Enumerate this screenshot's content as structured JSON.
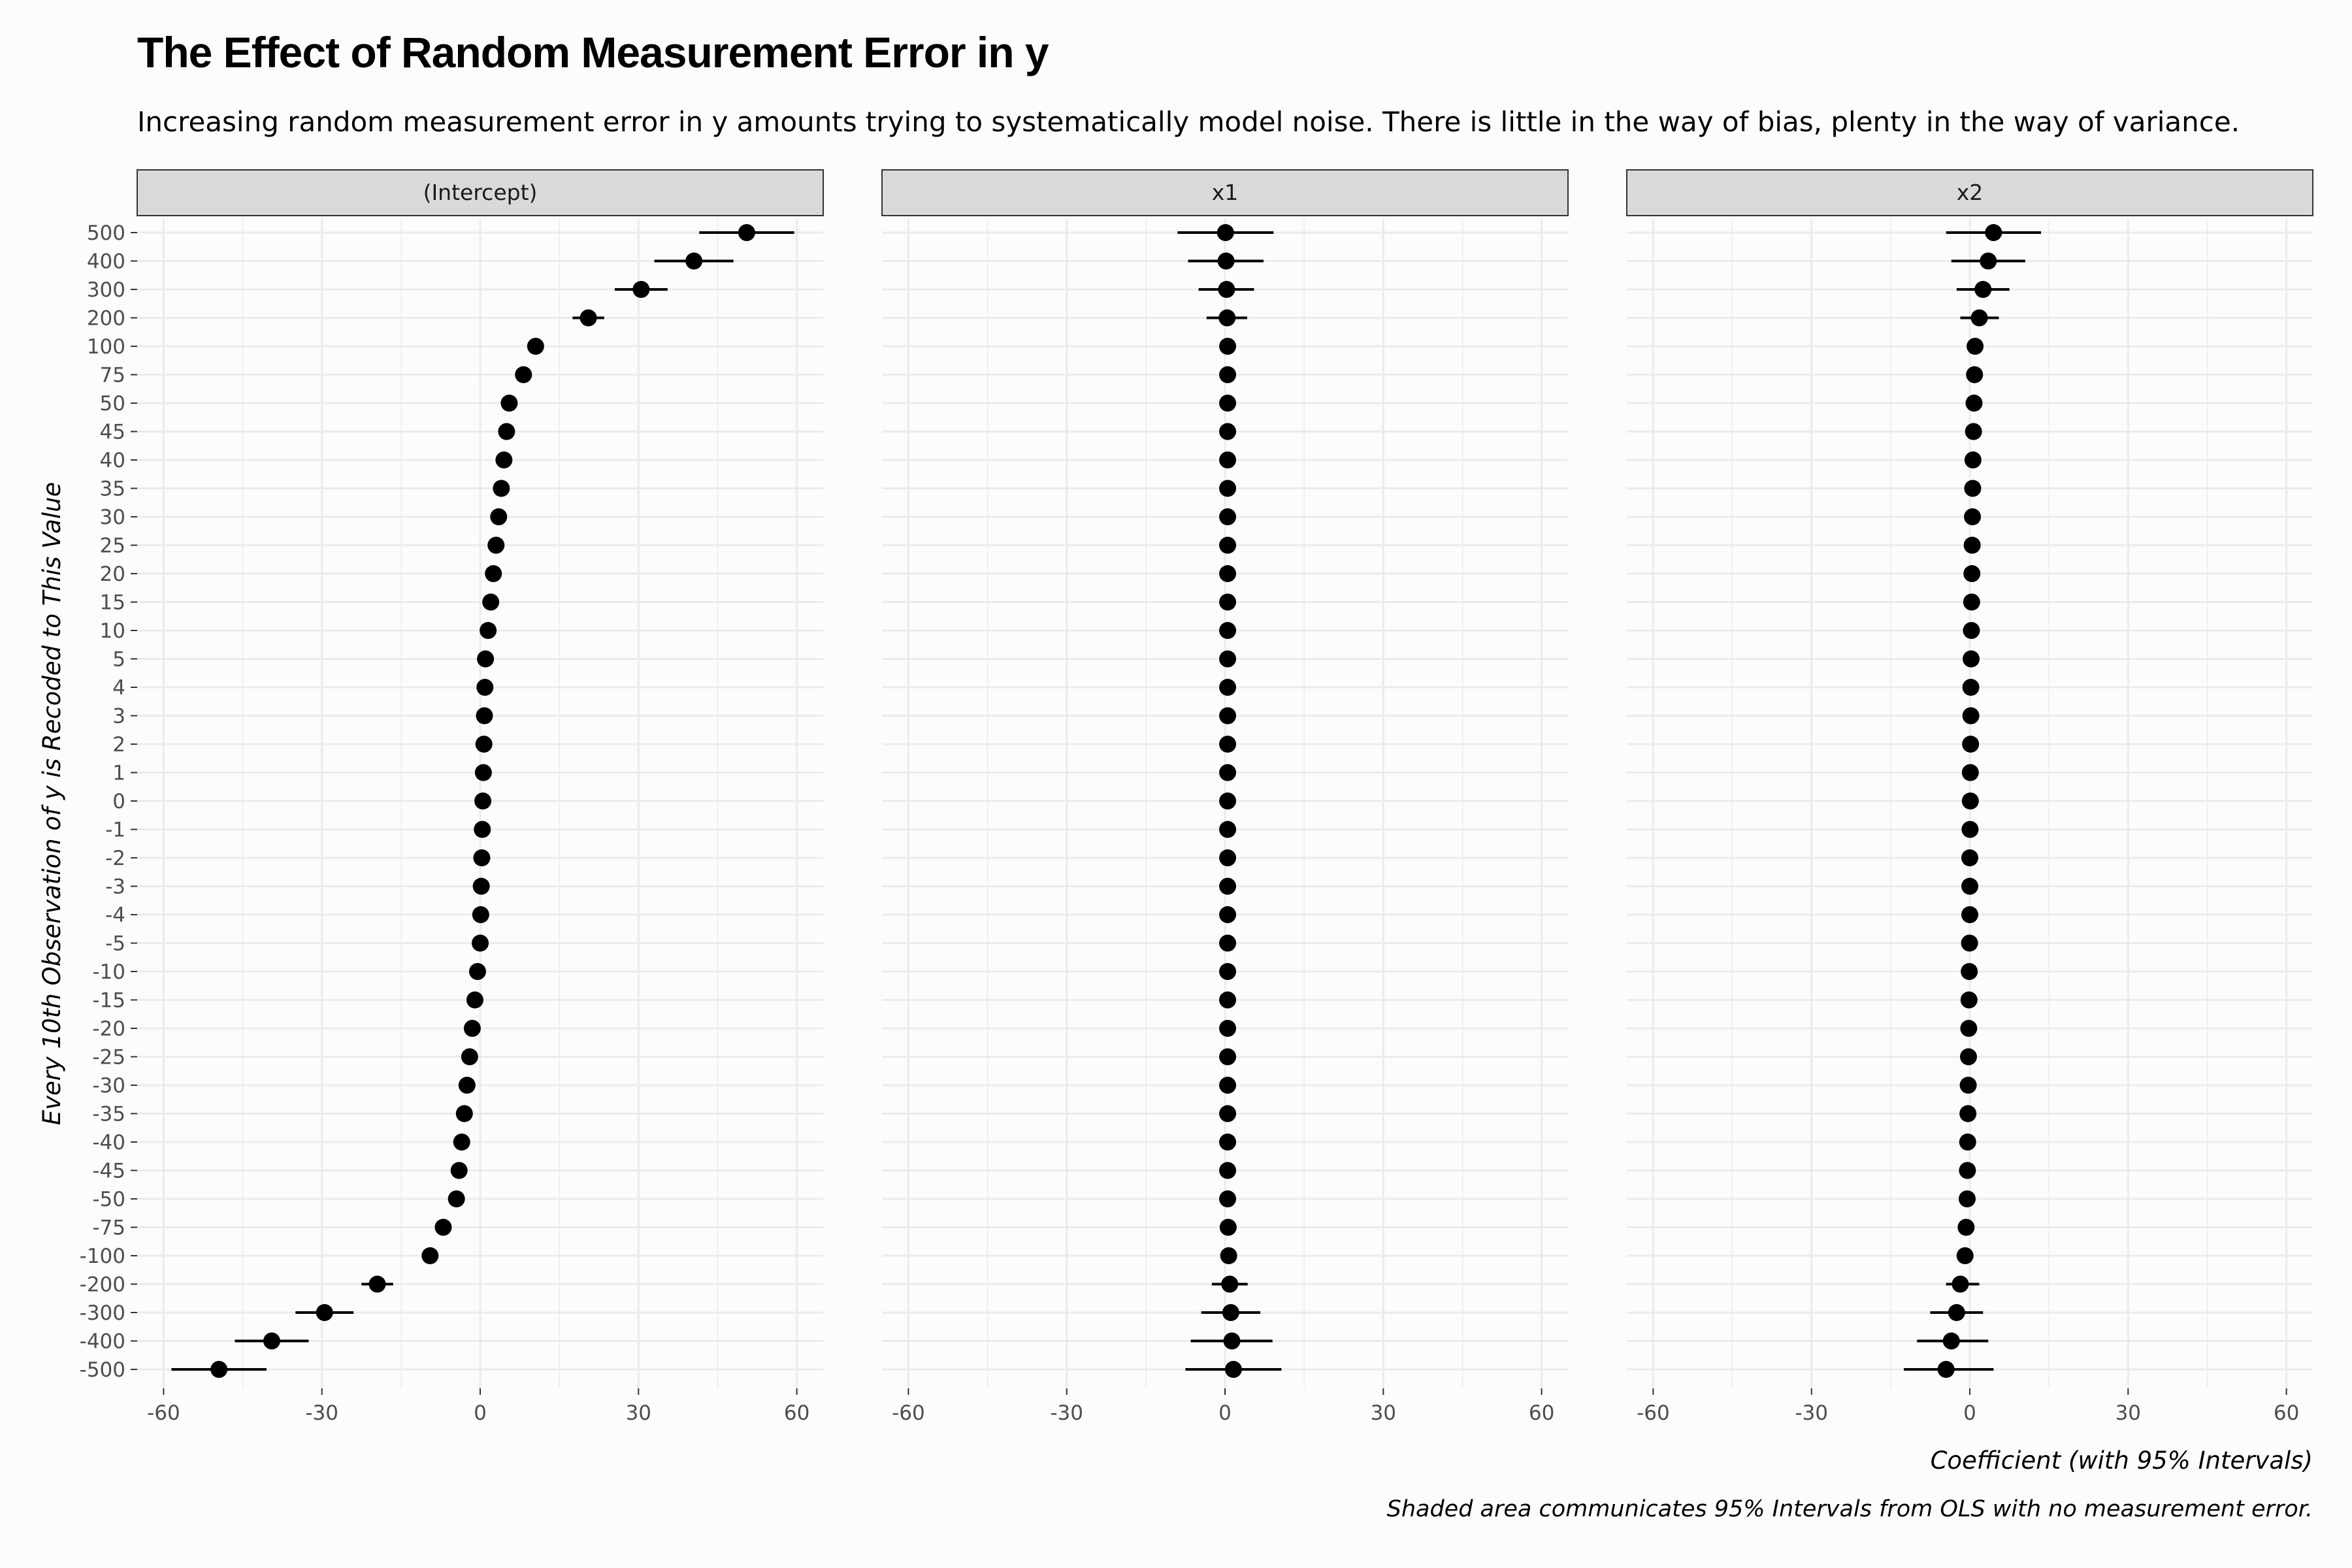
{
  "chart_data": {
    "type": "scatter",
    "title": "The Effect of Random Measurement Error in y",
    "subtitle": "Increasing random measurement error in y amounts trying to systematically model noise. There is little in the way of bias, plenty in the way of variance.",
    "xlabel": "Coefficient (with 95% Intervals)",
    "ylabel": "Every 10th Observation of y is Recoded to This Value",
    "caption": "Shaded area communicates 95% Intervals from OLS with no measurement error.",
    "xlim": [
      -65,
      65
    ],
    "x_ticks": [
      -60,
      -30,
      0,
      30,
      60
    ],
    "grid": true,
    "categories": [
      "500",
      "400",
      "300",
      "200",
      "100",
      "75",
      "50",
      "45",
      "40",
      "35",
      "30",
      "25",
      "20",
      "15",
      "10",
      "5",
      "4",
      "3",
      "2",
      "1",
      "0",
      "-1",
      "-2",
      "-3",
      "-4",
      "-5",
      "-10",
      "-15",
      "-20",
      "-25",
      "-30",
      "-35",
      "-40",
      "-45",
      "-50",
      "-75",
      "-100",
      "-200",
      "-300",
      "-400",
      "-500"
    ],
    "panels": [
      {
        "name": "(Intercept)",
        "estimate": [
          50.5,
          40.5,
          30.5,
          20.5,
          10.5,
          8.2,
          5.5,
          5.0,
          4.5,
          4.0,
          3.5,
          3.0,
          2.5,
          2.0,
          1.5,
          1.0,
          0.9,
          0.8,
          0.7,
          0.6,
          0.5,
          0.4,
          0.3,
          0.2,
          0.1,
          0.0,
          -0.5,
          -1.0,
          -1.5,
          -2.0,
          -2.5,
          -3.0,
          -3.5,
          -4.0,
          -4.5,
          -7.0,
          -9.5,
          -19.5,
          -29.5,
          -39.5,
          -49.5
        ],
        "lower": [
          41.5,
          33.0,
          25.5,
          17.5,
          9.0,
          7.0,
          4.6,
          4.1,
          3.6,
          3.1,
          2.7,
          2.2,
          1.7,
          1.2,
          0.7,
          0.2,
          0.1,
          0.0,
          -0.1,
          -0.2,
          -0.3,
          -0.4,
          -0.5,
          -0.6,
          -0.7,
          -0.8,
          -1.3,
          -1.8,
          -2.3,
          -2.8,
          -3.3,
          -3.8,
          -4.3,
          -4.8,
          -5.3,
          -8.2,
          -11.0,
          -22.5,
          -35.0,
          -46.5,
          -58.5
        ],
        "upper": [
          59.5,
          48.0,
          35.5,
          23.5,
          12.0,
          9.4,
          6.4,
          5.9,
          5.4,
          4.9,
          4.3,
          3.8,
          3.3,
          2.8,
          2.3,
          1.8,
          1.7,
          1.6,
          1.5,
          1.4,
          1.3,
          1.2,
          1.1,
          1.0,
          0.9,
          0.8,
          0.3,
          -0.2,
          -0.7,
          -1.2,
          -1.7,
          -2.2,
          -2.7,
          -3.2,
          -3.7,
          -5.8,
          -8.0,
          -16.5,
          -24.0,
          -32.5,
          -40.5
        ]
      },
      {
        "name": "x1",
        "estimate": [
          0.1,
          0.2,
          0.3,
          0.4,
          0.5,
          0.5,
          0.5,
          0.5,
          0.5,
          0.5,
          0.5,
          0.5,
          0.5,
          0.5,
          0.5,
          0.5,
          0.5,
          0.5,
          0.5,
          0.5,
          0.5,
          0.5,
          0.5,
          0.5,
          0.5,
          0.5,
          0.5,
          0.5,
          0.5,
          0.5,
          0.5,
          0.5,
          0.5,
          0.5,
          0.5,
          0.6,
          0.7,
          0.9,
          1.1,
          1.3,
          1.6
        ],
        "lower": [
          -9.0,
          -7.0,
          -5.0,
          -3.5,
          -0.3,
          -0.2,
          -0.1,
          -0.1,
          -0.1,
          -0.1,
          -0.1,
          -0.1,
          -0.1,
          -0.1,
          -0.1,
          -0.1,
          -0.1,
          -0.1,
          -0.1,
          -0.1,
          -0.1,
          -0.1,
          -0.1,
          -0.1,
          -0.1,
          -0.1,
          -0.1,
          -0.1,
          -0.1,
          -0.1,
          -0.1,
          -0.1,
          -0.1,
          -0.1,
          -0.1,
          0.0,
          0.0,
          -2.5,
          -4.5,
          -6.5,
          -7.5
        ],
        "upper": [
          9.2,
          7.3,
          5.5,
          4.2,
          1.3,
          1.2,
          1.1,
          1.1,
          1.1,
          1.1,
          1.1,
          1.1,
          1.1,
          1.1,
          1.1,
          1.1,
          1.1,
          1.1,
          1.1,
          1.1,
          1.1,
          1.1,
          1.1,
          1.1,
          1.1,
          1.1,
          1.1,
          1.1,
          1.1,
          1.1,
          1.1,
          1.1,
          1.1,
          1.1,
          1.1,
          1.2,
          1.4,
          4.3,
          6.7,
          9.0,
          10.7
        ]
      },
      {
        "name": "x2",
        "estimate": [
          4.5,
          3.5,
          2.5,
          1.8,
          1.0,
          0.9,
          0.8,
          0.7,
          0.6,
          0.55,
          0.5,
          0.45,
          0.4,
          0.35,
          0.3,
          0.25,
          0.2,
          0.2,
          0.15,
          0.1,
          0.1,
          0.05,
          0.0,
          0.0,
          0.0,
          -0.05,
          -0.1,
          -0.15,
          -0.2,
          -0.25,
          -0.3,
          -0.35,
          -0.4,
          -0.45,
          -0.5,
          -0.7,
          -0.9,
          -1.8,
          -2.5,
          -3.5,
          -4.5
        ],
        "lower": [
          -4.5,
          -3.5,
          -2.5,
          -1.8,
          0.2,
          0.1,
          0.0,
          -0.1,
          -0.2,
          -0.25,
          -0.3,
          -0.35,
          -0.4,
          -0.45,
          -0.5,
          -0.55,
          -0.6,
          -0.6,
          -0.65,
          -0.7,
          -0.7,
          -0.75,
          -0.8,
          -0.8,
          -0.8,
          -0.85,
          -0.9,
          -0.95,
          -1.0,
          -1.05,
          -1.1,
          -1.15,
          -1.2,
          -1.25,
          -1.3,
          -1.5,
          -1.7,
          -4.5,
          -7.5,
          -10.0,
          -12.5
        ],
        "upper": [
          13.5,
          10.5,
          7.5,
          5.5,
          1.8,
          1.7,
          1.6,
          1.5,
          1.4,
          1.35,
          1.3,
          1.25,
          1.2,
          1.15,
          1.1,
          1.05,
          1.0,
          1.0,
          0.95,
          0.9,
          0.9,
          0.85,
          0.8,
          0.8,
          0.8,
          0.75,
          0.7,
          0.65,
          0.6,
          0.55,
          0.5,
          0.45,
          0.4,
          0.35,
          0.3,
          0.1,
          -0.1,
          1.8,
          2.5,
          3.5,
          4.5
        ]
      }
    ]
  }
}
